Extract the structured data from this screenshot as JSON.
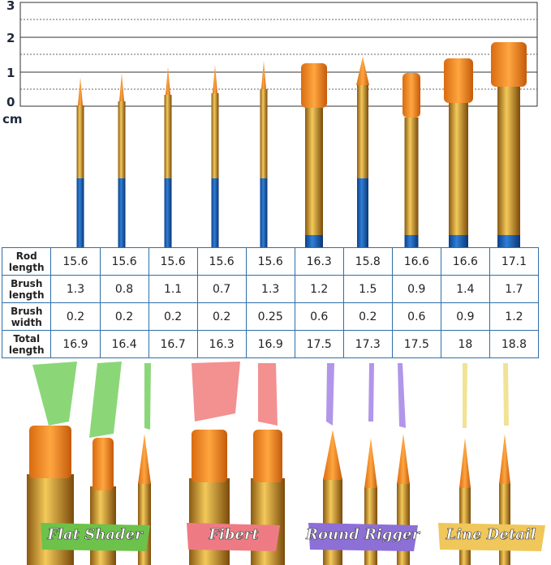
{
  "ruler": {
    "labels": [
      "3",
      "2",
      "1",
      "0"
    ],
    "unit": "cm"
  },
  "table": {
    "rows": [
      {
        "header": "Rod length",
        "cells": [
          15.6,
          15.6,
          15.6,
          15.6,
          15.6,
          16.3,
          15.8,
          16.6,
          16.6,
          17.1
        ]
      },
      {
        "header": "Brush length",
        "cells": [
          1.3,
          0.8,
          1.1,
          0.7,
          1.3,
          1.2,
          1.5,
          0.9,
          1.4,
          1.7
        ]
      },
      {
        "header": "Brush width",
        "cells": [
          0.2,
          0.2,
          0.2,
          0.2,
          0.25,
          0.6,
          0.2,
          0.6,
          0.9,
          1.2
        ]
      },
      {
        "header": "Total length",
        "cells": [
          16.9,
          16.4,
          16.7,
          16.3,
          16.9,
          17.5,
          17.3,
          17.5,
          18,
          18.8
        ]
      }
    ]
  },
  "labels": [
    "Flat Shader",
    "Fibert",
    "Round Rigger",
    "Line Detail"
  ]
}
